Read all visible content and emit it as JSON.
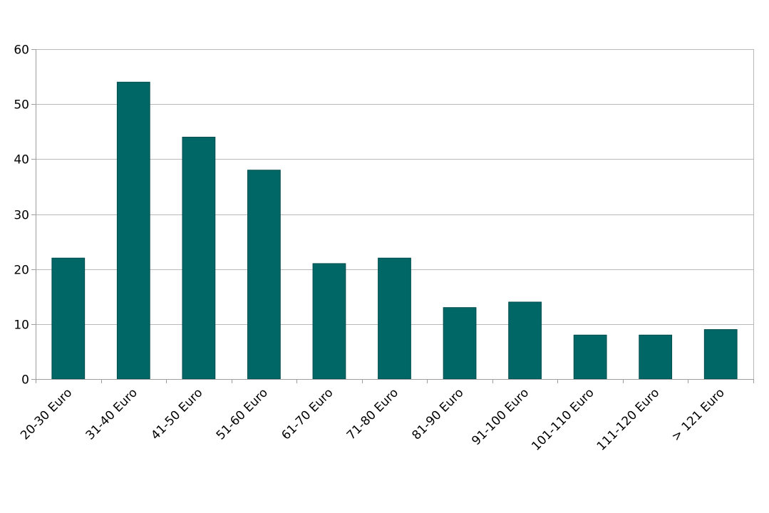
{
  "chart_data": {
    "type": "bar",
    "categories": [
      "20-30 Euro",
      "31-40 Euro",
      "41-50 Euro",
      "51-60 Euro",
      "61-70 Euro",
      "71-80 Euro",
      "81-90 Euro",
      "91-100 Euro",
      "101-110 Euro",
      "111-120 Euro",
      "> 121 Euro"
    ],
    "values": [
      22,
      54,
      44,
      38,
      21,
      22,
      13,
      14,
      8,
      8,
      9
    ],
    "title": "",
    "xlabel": "",
    "ylabel": "",
    "ylim": [
      0,
      60
    ],
    "yticks": [
      0,
      10,
      20,
      30,
      40,
      50,
      60
    ],
    "grid": true,
    "legend": "none",
    "colors": {
      "bar": "#006666",
      "grid": "#b9b9b9",
      "axis": "#9e9e9e"
    }
  }
}
